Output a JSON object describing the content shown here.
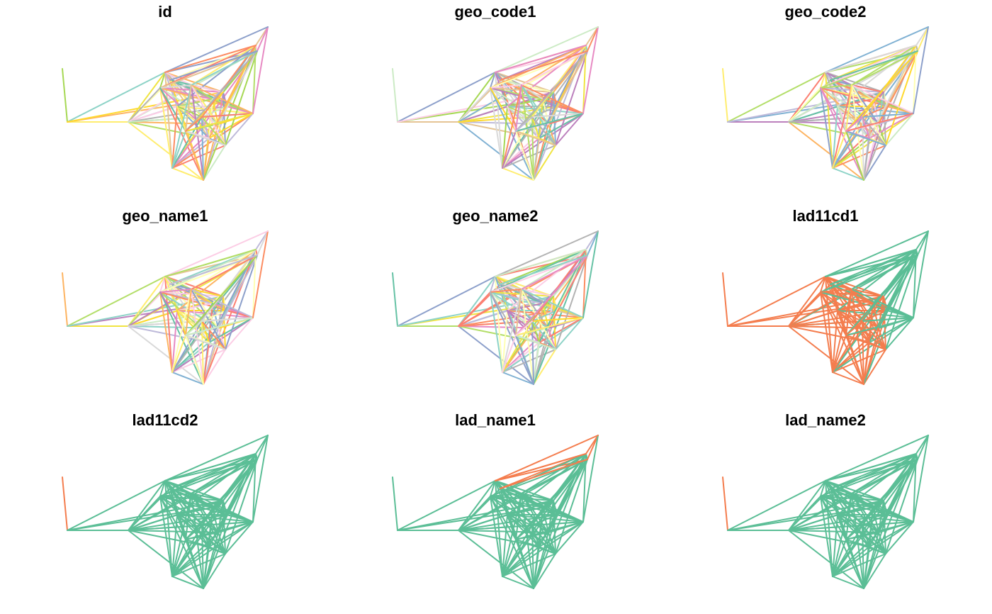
{
  "panels": [
    {
      "title": "id",
      "scheme": "mixed",
      "seed": 3
    },
    {
      "title": "geo_code1",
      "scheme": "mixed",
      "seed": 11
    },
    {
      "title": "geo_code2",
      "scheme": "mixed",
      "seed": 23
    },
    {
      "title": "geo_name1",
      "scheme": "mixed",
      "seed": 37
    },
    {
      "title": "geo_name2",
      "scheme": "mixed",
      "seed": 53
    },
    {
      "title": "lad11cd1",
      "scheme": "lad1",
      "seed": 5
    },
    {
      "title": "lad11cd2",
      "scheme": "lad2",
      "seed": 7
    },
    {
      "title": "lad_name1",
      "scheme": "ladname1",
      "seed": 13
    },
    {
      "title": "lad_name2",
      "scheme": "lad2",
      "seed": 17
    }
  ],
  "colors": {
    "palette": [
      "#66C2A5",
      "#FC8D62",
      "#8DA0CB",
      "#E78AC3",
      "#A6D854",
      "#FFD92F",
      "#E5C494",
      "#B3B3B3",
      "#8DD3C7",
      "#FFFFB3",
      "#BEBADA",
      "#FB8072",
      "#80B1D3",
      "#FDB462",
      "#B3DE69",
      "#FCCDE5",
      "#D9D9D9",
      "#BC80BD",
      "#CCEBC5",
      "#FFED6F",
      "#F0E442"
    ],
    "green": "#5BBE96",
    "orange": "#F47D4E"
  }
}
